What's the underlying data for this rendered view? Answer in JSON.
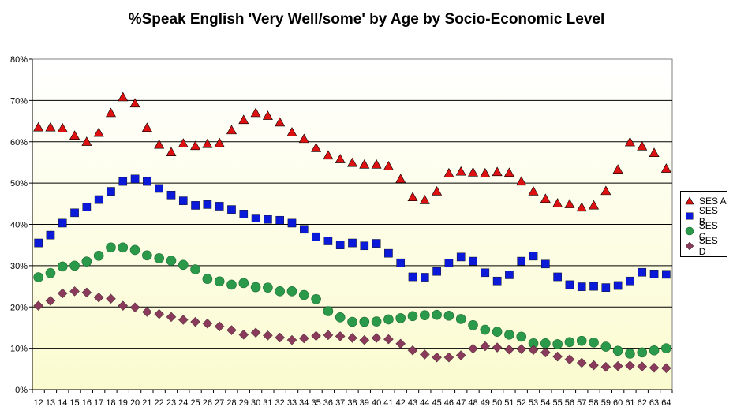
{
  "chart_data": {
    "type": "scatter",
    "title": "%Speak English 'Very Well/some' by Age by Socio-Economic Level",
    "xlabel": "",
    "ylabel": "",
    "x": [
      12,
      13,
      14,
      15,
      16,
      17,
      18,
      19,
      20,
      21,
      22,
      23,
      24,
      25,
      26,
      27,
      28,
      29,
      30,
      31,
      32,
      33,
      34,
      35,
      36,
      37,
      38,
      39,
      40,
      41,
      42,
      43,
      44,
      45,
      46,
      47,
      48,
      49,
      50,
      51,
      52,
      53,
      54,
      55,
      56,
      57,
      58,
      59,
      60,
      61,
      62,
      63,
      64
    ],
    "ylim": [
      0,
      80
    ],
    "yticks": [
      0,
      10,
      20,
      30,
      40,
      50,
      60,
      70,
      80
    ],
    "ytick_labels": [
      "0%",
      "10%",
      "20%",
      "30%",
      "40%",
      "50%",
      "60%",
      "70%",
      "80%"
    ],
    "grid": true,
    "legend_position": "right",
    "series": [
      {
        "name": "SES A",
        "color": "#dd1111",
        "marker": "triangle",
        "values": [
          63.5,
          63.5,
          63.3,
          61.5,
          60.0,
          62.2,
          67.0,
          70.8,
          69.3,
          63.4,
          59.3,
          57.5,
          59.6,
          59.0,
          59.5,
          59.7,
          62.8,
          65.3,
          67.0,
          66.3,
          64.7,
          62.3,
          60.7,
          58.5,
          56.7,
          55.8,
          54.9,
          54.5,
          54.5,
          54.1,
          51.0,
          46.6,
          45.9,
          48.0,
          52.4,
          52.8,
          52.6,
          52.4,
          52.7,
          52.5,
          50.4,
          48.0,
          46.2,
          45.1,
          44.9,
          44.1,
          44.6,
          48.1,
          53.3,
          59.9,
          58.9,
          57.3,
          53.5
        ]
      },
      {
        "name": "SES B",
        "color": "#0a1ad8",
        "marker": "square",
        "values": [
          35.5,
          37.4,
          40.3,
          42.8,
          44.2,
          46.0,
          48.0,
          50.4,
          51.0,
          50.4,
          48.7,
          47.1,
          45.7,
          44.6,
          44.8,
          44.4,
          43.6,
          42.5,
          41.5,
          41.2,
          41.0,
          40.3,
          38.8,
          37.0,
          36.0,
          35.0,
          35.5,
          34.8,
          35.4,
          33.0,
          30.7,
          27.3,
          27.2,
          28.6,
          30.6,
          32.1,
          31.1,
          28.3,
          26.3,
          27.8,
          31.1,
          32.3,
          30.4,
          27.3,
          25.4,
          24.9,
          25.0,
          24.7,
          25.2,
          26.3,
          28.4,
          28.0,
          27.9
        ]
      },
      {
        "name": "SES C",
        "color": "#2a9a4a",
        "marker": "circle",
        "values": [
          27.2,
          28.2,
          29.8,
          30.0,
          31.0,
          32.4,
          34.4,
          34.4,
          33.8,
          32.5,
          31.8,
          31.2,
          30.2,
          29.1,
          26.8,
          26.2,
          25.4,
          25.8,
          24.8,
          24.7,
          23.8,
          23.8,
          22.9,
          21.9,
          19.0,
          17.5,
          16.4,
          16.4,
          16.5,
          17.0,
          17.3,
          17.8,
          18.0,
          18.1,
          17.9,
          17.1,
          15.6,
          14.5,
          14.0,
          13.3,
          12.8,
          11.2,
          11.2,
          11.0,
          11.5,
          11.8,
          11.4,
          10.4,
          9.4,
          8.7,
          9.0,
          9.5,
          10.0
        ]
      },
      {
        "name": "SES D",
        "color": "#8a3a5a",
        "marker": "diamond",
        "values": [
          20.3,
          21.5,
          23.3,
          23.8,
          23.5,
          22.3,
          22.0,
          20.3,
          19.9,
          18.8,
          18.3,
          17.6,
          16.9,
          16.4,
          16.0,
          15.3,
          14.4,
          13.3,
          13.8,
          13.1,
          12.6,
          12.0,
          12.4,
          13.0,
          13.2,
          12.9,
          12.5,
          12.0,
          12.5,
          12.2,
          11.1,
          9.5,
          8.5,
          7.8,
          7.8,
          8.3,
          9.9,
          10.5,
          10.2,
          9.7,
          9.8,
          9.6,
          9.0,
          8.0,
          7.3,
          6.5,
          5.9,
          5.5,
          5.7,
          5.8,
          5.6,
          5.3,
          5.2
        ]
      }
    ]
  }
}
